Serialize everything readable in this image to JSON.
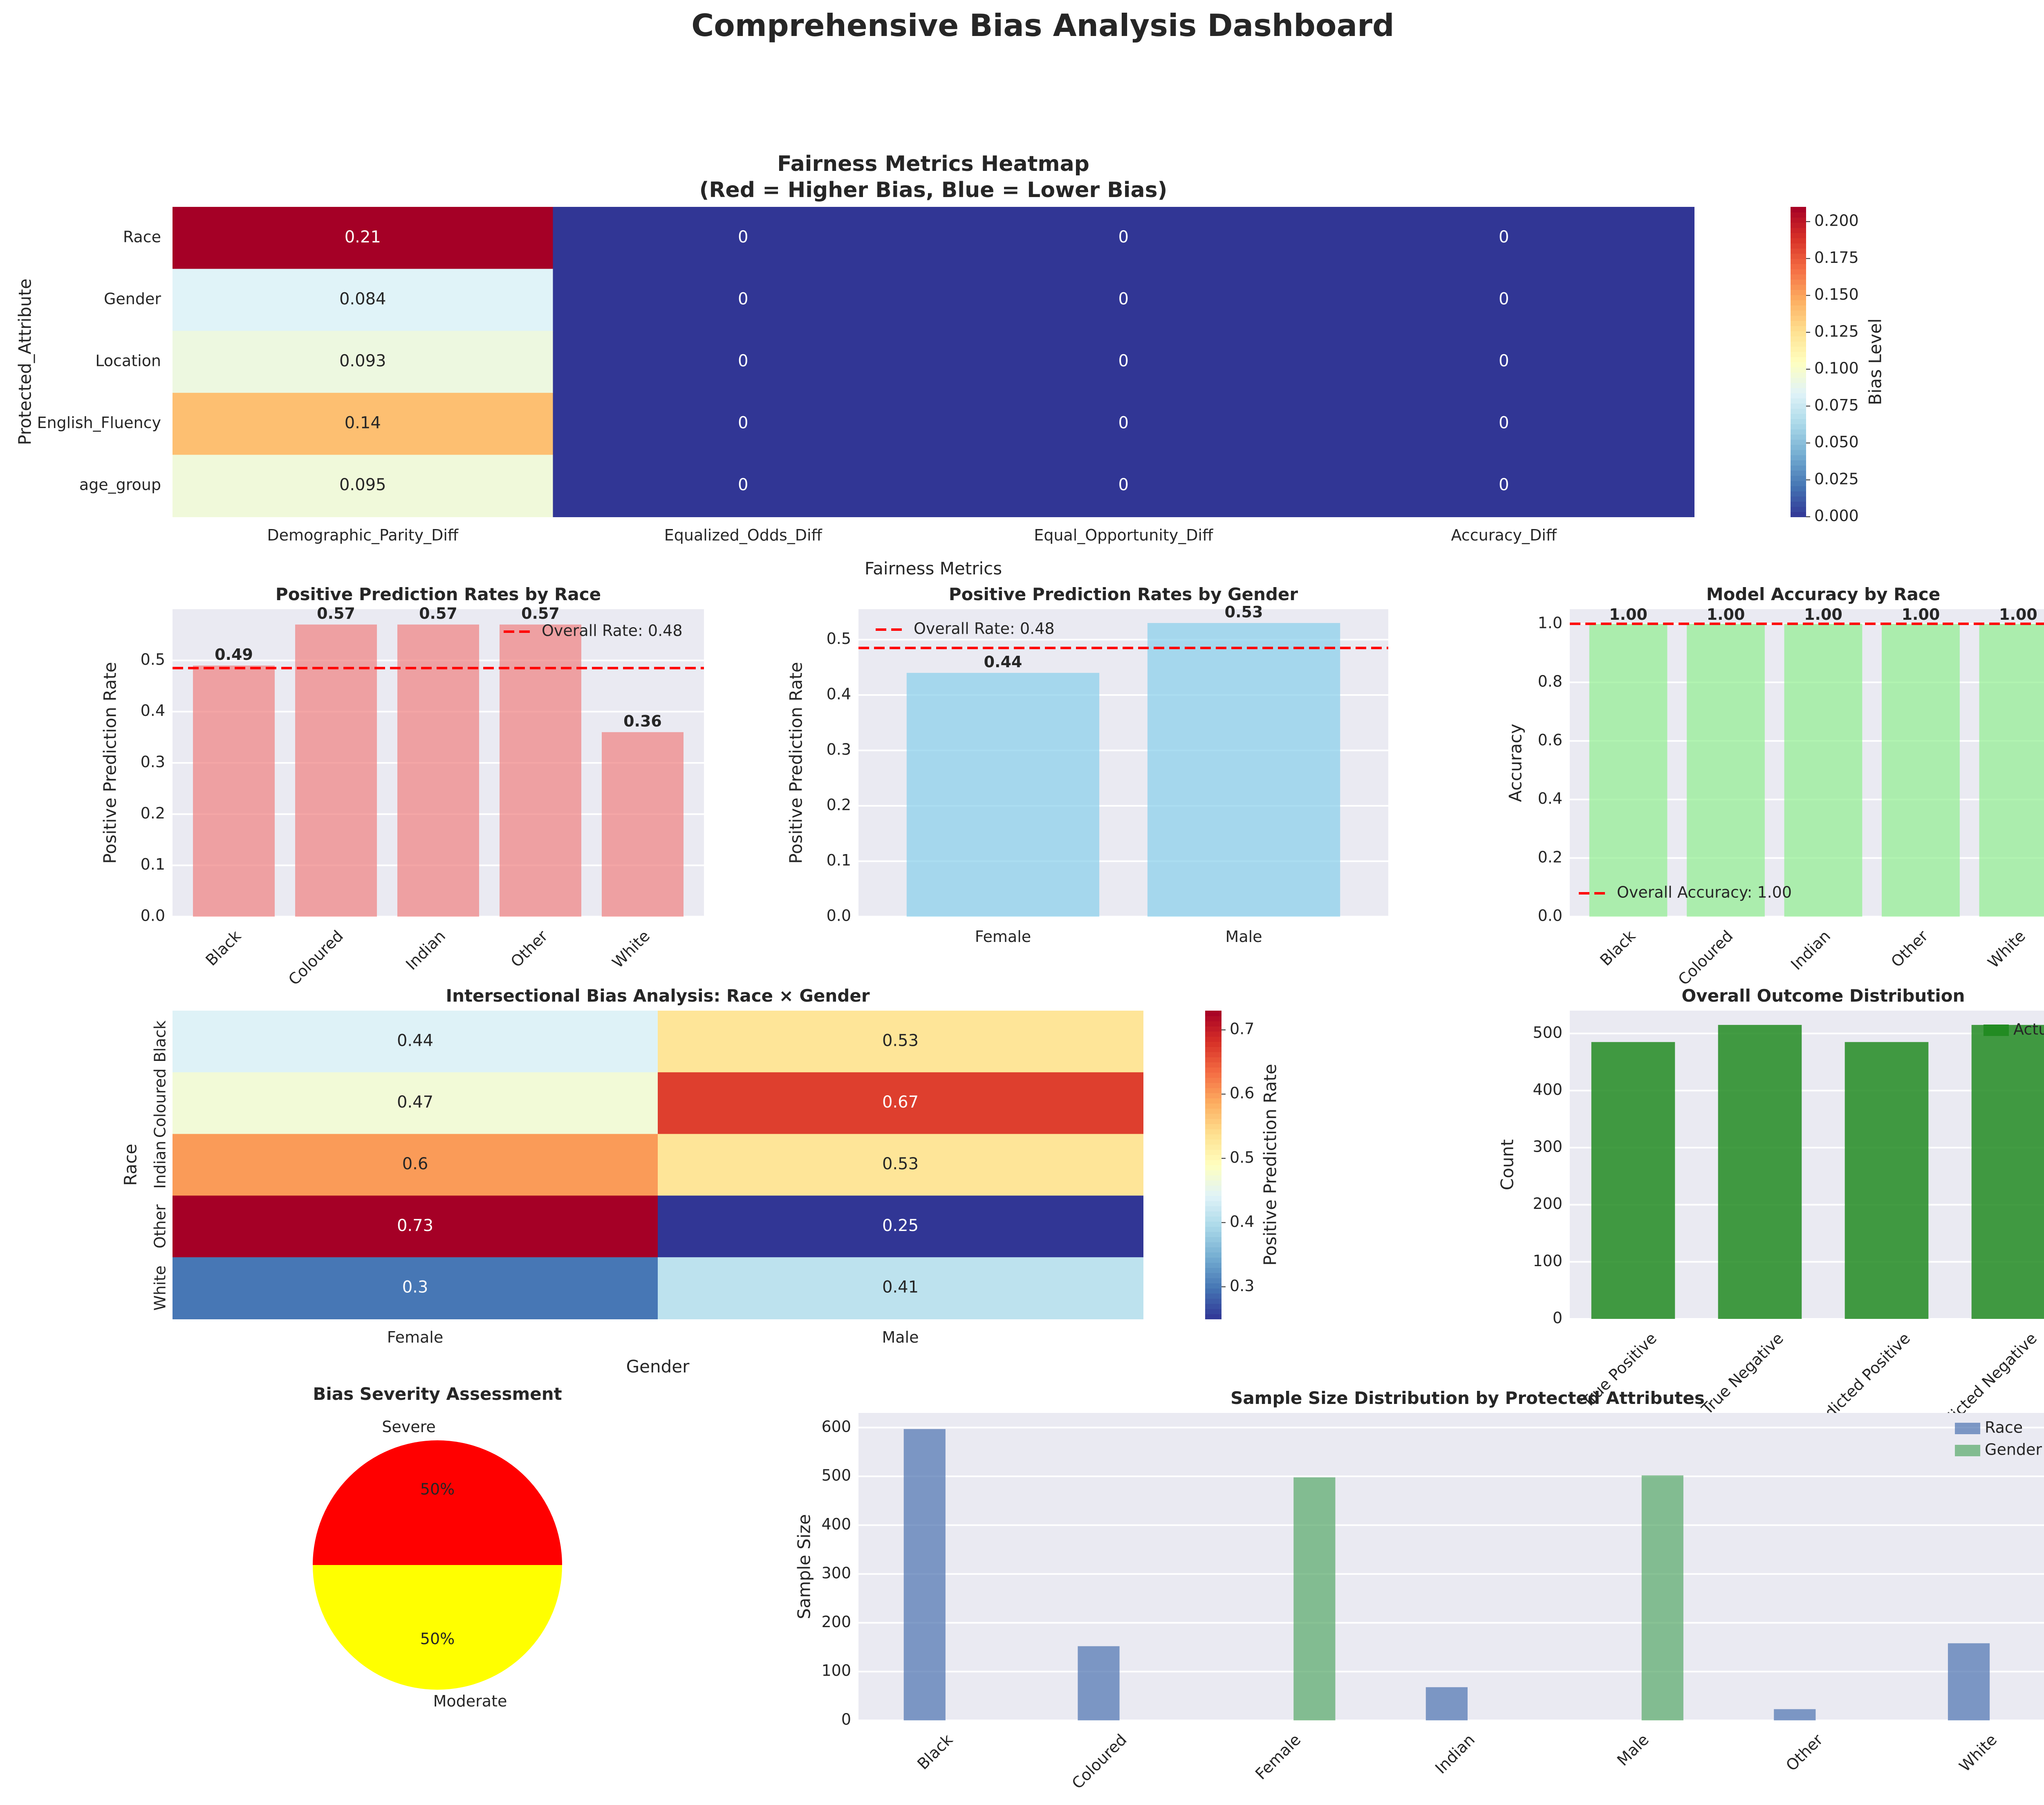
{
  "title": "Comprehensive Bias Analysis Dashboard",
  "colors": {
    "panel_bg": "#EAEAF2",
    "race_bar": "#F08080",
    "gender_bar": "#87CEEB",
    "accuracy_bar": "#90EE90",
    "outcome_bar": "#228B22",
    "sample_race": "#4C72B0",
    "sample_gender": "#55A868",
    "ref_line": "#FF0000",
    "severe": "#FF0000",
    "moderate": "#FFFF00"
  },
  "chart_data": [
    {
      "id": "fairness-heatmap",
      "type": "heatmap",
      "title": "Fairness Metrics Heatmap\n(Red = Higher Bias, Blue = Lower Bias)",
      "xlabel": "Fairness Metrics",
      "ylabel": "Protected_Attribute",
      "x": [
        "Demographic_Parity_Diff",
        "Equalized_Odds_Diff",
        "Equal_Opportunity_Diff",
        "Accuracy_Diff"
      ],
      "y": [
        "Race",
        "Gender",
        "Location",
        "English_Fluency",
        "age_group"
      ],
      "values": [
        [
          0.21,
          0,
          0,
          0
        ],
        [
          0.084,
          0,
          0,
          0
        ],
        [
          0.093,
          0,
          0,
          0
        ],
        [
          0.14,
          0,
          0,
          0
        ],
        [
          0.095,
          0,
          0,
          0
        ]
      ],
      "annotations": [
        [
          "0.21",
          "0",
          "0",
          "0"
        ],
        [
          "0.084",
          "0",
          "0",
          "0"
        ],
        [
          "0.093",
          "0",
          "0",
          "0"
        ],
        [
          "0.14",
          "0",
          "0",
          "0"
        ],
        [
          "0.095",
          "0",
          "0",
          "0"
        ]
      ],
      "colorbar_label": "Bias Level",
      "vmin": 0,
      "vmax": 0.21,
      "colorbar_ticks": [
        "0.000",
        "0.025",
        "0.050",
        "0.075",
        "0.100",
        "0.125",
        "0.150",
        "0.175",
        "0.200"
      ],
      "colormap": "RdYlBu_r"
    },
    {
      "id": "race-rates",
      "type": "bar",
      "title": "Positive Prediction Rates by Race",
      "xlabel": "",
      "ylabel": "Positive Prediction Rate",
      "categories": [
        "Black",
        "Coloured",
        "Indian",
        "Other",
        "White"
      ],
      "values": [
        0.49,
        0.57,
        0.57,
        0.57,
        0.36
      ],
      "value_labels": [
        "0.49",
        "0.57",
        "0.57",
        "0.57",
        "0.36"
      ],
      "ylim": [
        0,
        0.6
      ],
      "yticks": [
        "0.0",
        "0.1",
        "0.2",
        "0.3",
        "0.4",
        "0.5"
      ],
      "reference_line": 0.485,
      "legend": "Overall Rate: 0.48",
      "legend_position": "top-right"
    },
    {
      "id": "gender-rates",
      "type": "bar",
      "title": "Positive Prediction Rates by Gender",
      "xlabel": "",
      "ylabel": "Positive Prediction Rate",
      "categories": [
        "Female",
        "Male"
      ],
      "values": [
        0.44,
        0.53
      ],
      "value_labels": [
        "0.44",
        "0.53"
      ],
      "ylim": [
        0,
        0.555
      ],
      "yticks": [
        "0.0",
        "0.1",
        "0.2",
        "0.3",
        "0.4",
        "0.5"
      ],
      "reference_line": 0.485,
      "legend": "Overall Rate: 0.48",
      "legend_position": "top-left"
    },
    {
      "id": "accuracy-race",
      "type": "bar",
      "title": "Model Accuracy by Race",
      "xlabel": "",
      "ylabel": "Accuracy",
      "categories": [
        "Black",
        "Coloured",
        "Indian",
        "Other",
        "White"
      ],
      "values": [
        1.0,
        1.0,
        1.0,
        1.0,
        1.0
      ],
      "value_labels": [
        "1.00",
        "1.00",
        "1.00",
        "1.00",
        "1.00"
      ],
      "ylim": [
        0,
        1.05
      ],
      "yticks": [
        "0.0",
        "0.2",
        "0.4",
        "0.6",
        "0.8",
        "1.0"
      ],
      "reference_line": 1.0,
      "legend": "Overall Accuracy: 1.00",
      "legend_position": "bottom-left"
    },
    {
      "id": "intersectional-heatmap",
      "type": "heatmap",
      "title": "Intersectional Bias Analysis: Race × Gender",
      "xlabel": "Gender",
      "ylabel": "Race",
      "x": [
        "Female",
        "Male"
      ],
      "y": [
        "Black",
        "Coloured",
        "Indian",
        "Other",
        "White"
      ],
      "values": [
        [
          0.44,
          0.53
        ],
        [
          0.47,
          0.67
        ],
        [
          0.6,
          0.53
        ],
        [
          0.73,
          0.25
        ],
        [
          0.3,
          0.41
        ]
      ],
      "annotations": [
        [
          "0.44",
          "0.53"
        ],
        [
          "0.47",
          "0.67"
        ],
        [
          "0.6",
          "0.53"
        ],
        [
          "0.73",
          "0.25"
        ],
        [
          "0.3",
          "0.41"
        ]
      ],
      "colorbar_label": "Positive Prediction Rate",
      "vmin": 0.25,
      "vmax": 0.73,
      "colorbar_ticks": [
        "0.3",
        "0.4",
        "0.5",
        "0.6",
        "0.7"
      ],
      "colormap": "RdYlBu_r"
    },
    {
      "id": "outcome-distribution",
      "type": "bar",
      "title": "Overall Outcome Distribution",
      "xlabel": "",
      "ylabel": "Count",
      "categories": [
        "True Positive",
        "True Negative",
        "Predicted Positive",
        "Predicted Negative"
      ],
      "series": [
        {
          "name": "Actual",
          "values": [
            485,
            515,
            485,
            515
          ]
        }
      ],
      "ylim": [
        0,
        540
      ],
      "yticks": [
        "0",
        "100",
        "200",
        "300",
        "400",
        "500"
      ],
      "legend_position": "top-right"
    },
    {
      "id": "bias-severity",
      "type": "pie",
      "title": "Bias Severity Assessment",
      "labels": [
        "Severe",
        "Moderate"
      ],
      "values": [
        50,
        50
      ],
      "pct_labels": [
        "50%",
        "50%"
      ]
    },
    {
      "id": "sample-size",
      "type": "bar",
      "title": "Sample Size Distribution by Protected Attributes",
      "xlabel": "",
      "ylabel": "Sample Size",
      "categories": [
        "Black",
        "Coloured",
        "Female",
        "Indian",
        "Male",
        "Other",
        "White"
      ],
      "series": [
        {
          "name": "Race",
          "values": [
            597,
            152,
            null,
            68,
            null,
            23,
            158
          ]
        },
        {
          "name": "Gender",
          "values": [
            null,
            null,
            498,
            null,
            502,
            null,
            null
          ]
        }
      ],
      "ylim": [
        0,
        630
      ],
      "yticks": [
        "0",
        "100",
        "200",
        "300",
        "400",
        "500",
        "600"
      ],
      "legend_position": "top-right"
    }
  ]
}
